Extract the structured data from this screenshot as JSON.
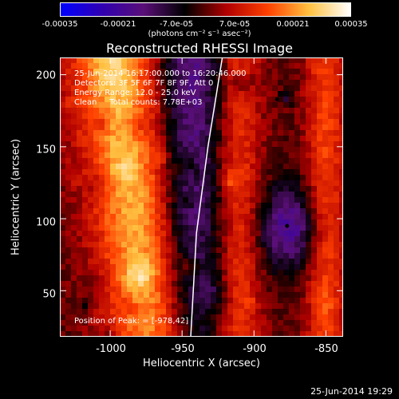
{
  "colorbar": {
    "ticks": [
      "-0.00035",
      "-0.00021",
      "-7.0e-05",
      "7.0e-05",
      "0.00021",
      "0.00035"
    ],
    "units": "(photons cm⁻² s⁻¹ asec⁻²)",
    "colors": [
      "#0000ff",
      "#3000b0",
      "#5a0f78",
      "#000000",
      "#b00000",
      "#ff4000",
      "#ffc040",
      "#ffffff"
    ]
  },
  "info": {
    "time": "25-Jun-2014 16:17:00.000 to 16:20:46.000",
    "detectors": "Detectors: 3F 5F 6F 7F 8F 9F, Att 0",
    "energy": "Energy Range: 12.0 - 25.0 keV",
    "clean": "Clean     Total counts: 7.78E+03",
    "peak": "Position of Peak: = [-978,42]"
  },
  "stamp": "25-Jun-2014 19:29",
  "chart_data": {
    "type": "heatmap",
    "title": "Reconstructed RHESSI Image",
    "xlabel": "Heliocentric X (arcsec)",
    "ylabel": "Heliocentric Y (arcsec)",
    "xlim": [
      -1035,
      -838
    ],
    "ylim": [
      18,
      212
    ],
    "xticks": [
      -1000,
      -950,
      -900,
      -850
    ],
    "yticks": [
      50,
      100,
      150,
      200
    ],
    "zlim": [
      -0.00035,
      0.00035
    ],
    "limb_points": [
      [
        -944,
        18
      ],
      [
        -940,
        90
      ],
      [
        -932,
        150
      ],
      [
        -922,
        212
      ]
    ],
    "peak": [
      -978,
      42
    ],
    "marked_points": [
      [
        -884,
        183
      ],
      [
        -877,
        95
      ]
    ]
  }
}
